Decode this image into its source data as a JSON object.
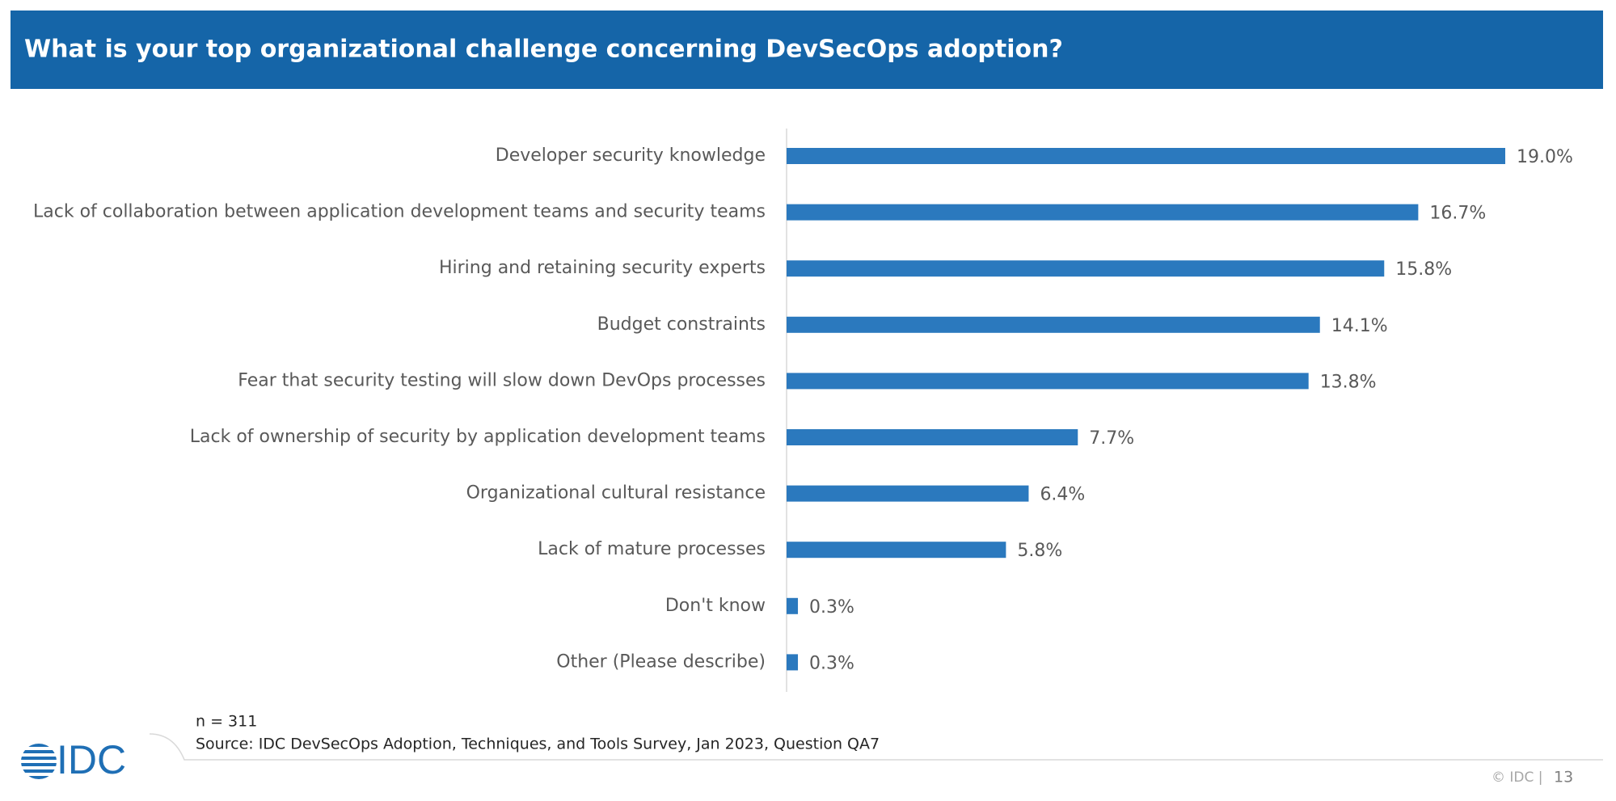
{
  "chart_data": {
    "type": "bar",
    "orientation": "horizontal",
    "title": "What is your top organizational challenge concerning DevSecOps adoption?",
    "categories": [
      "Developer security knowledge",
      "Lack of collaboration between application development teams and security teams",
      "Hiring and retaining security experts",
      "Budget constraints",
      "Fear that security testing will slow down DevOps processes",
      "Lack of ownership of security by application development teams",
      "Organizational cultural resistance",
      "Lack of mature processes",
      "Don't know",
      "Other (Please describe)"
    ],
    "values": [
      19.0,
      16.7,
      15.8,
      14.1,
      13.8,
      7.7,
      6.4,
      5.8,
      0.3,
      0.3
    ],
    "value_labels": [
      "19.0%",
      "16.7%",
      "15.8%",
      "14.1%",
      "13.8%",
      "7.7%",
      "6.4%",
      "5.8%",
      "0.3%",
      "0.3%"
    ],
    "color": "#2b79be"
  },
  "note": "n = 311",
  "source": "Source: IDC DevSecOps Adoption, Techniques, and Tools Survey, Jan 2023, Question QA7",
  "logo": "IDC",
  "copyright": "© IDC |",
  "page_number": "13"
}
